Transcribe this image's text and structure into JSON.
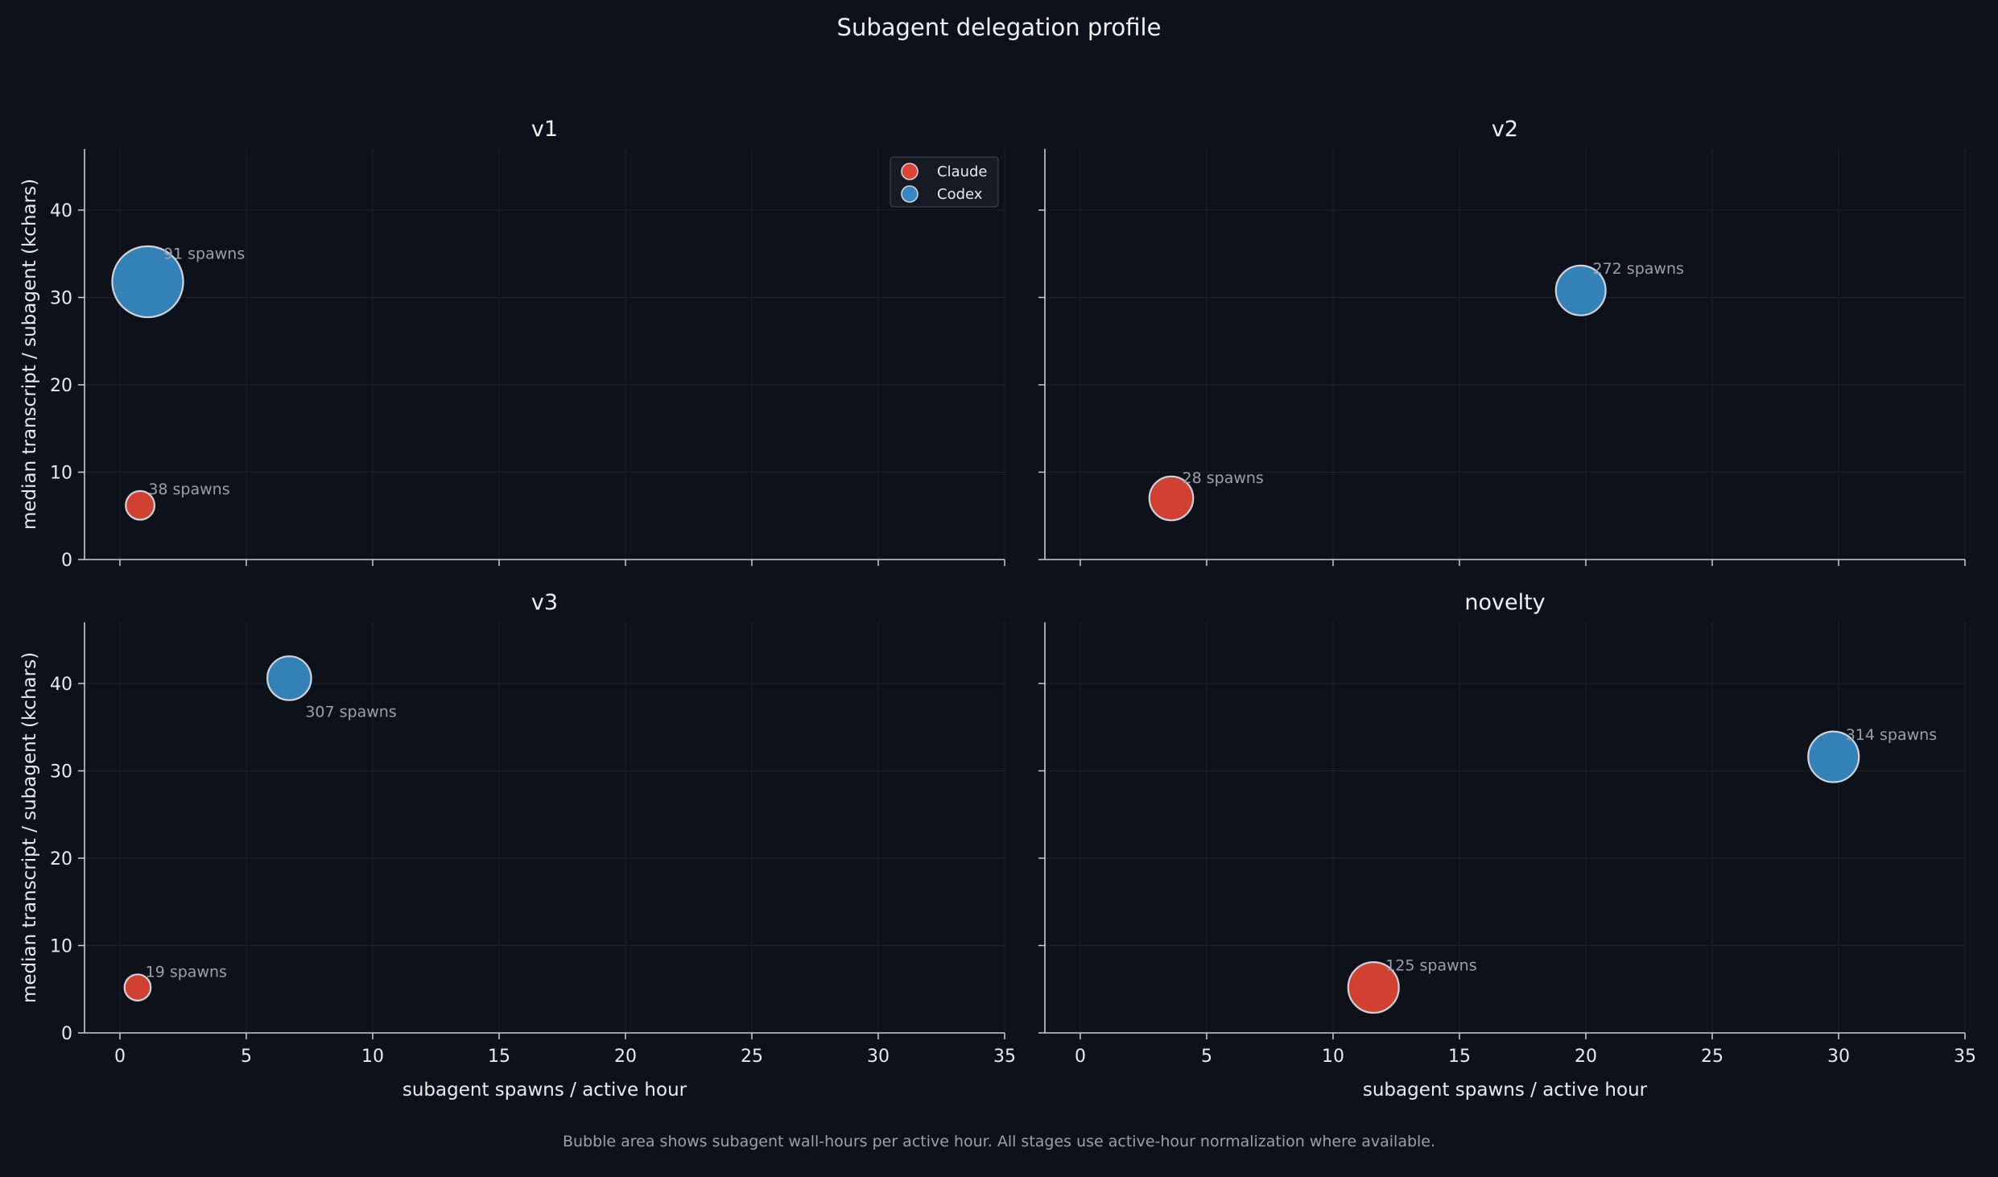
{
  "suptitle": "Subagent delegation profile",
  "footnote": "Bubble area shows subagent wall-hours per active hour. All stages use active-hour normalization where available.",
  "colors": {
    "background": "#0d1119",
    "axis": "#c9ccd3",
    "grid": "#1b2029",
    "claude": "#dc4433",
    "codex": "#3688c0",
    "bubble_edge": "#cfd4dc",
    "annotation": "#9aa0aa"
  },
  "legend": {
    "placement": "upper-right of first panel",
    "entries": [
      "Claude",
      "Codex"
    ]
  },
  "chart_data": [
    {
      "type": "scatter",
      "title": "v1",
      "xlabel": "",
      "ylabel": "median transcript / subagent (kchars)",
      "xlim": [
        -1.4,
        35
      ],
      "ylim": [
        0,
        47
      ],
      "xticks": [
        "0",
        "5",
        "10",
        "15",
        "20",
        "25",
        "30",
        "35"
      ],
      "yticks": [
        "0",
        "10",
        "20",
        "30",
        "40"
      ],
      "grid": true,
      "series": [
        {
          "name": "Claude",
          "x": 0.8,
          "y": 6.2,
          "size": 0.9,
          "annotation": "38 spawns"
        },
        {
          "name": "Codex",
          "x": 1.1,
          "y": 31.8,
          "size": 5.5,
          "annotation": "91 spawns"
        }
      ]
    },
    {
      "type": "scatter",
      "title": "v2",
      "xlabel": "",
      "ylabel": "",
      "xlim": [
        -1.4,
        35
      ],
      "ylim": [
        0,
        47
      ],
      "xticks": [
        "0",
        "5",
        "10",
        "15",
        "20",
        "25",
        "30",
        "35"
      ],
      "yticks": [
        "0",
        "10",
        "20",
        "30",
        "40"
      ],
      "grid": true,
      "series": [
        {
          "name": "Claude",
          "x": 3.6,
          "y": 7.0,
          "size": 2.1,
          "annotation": "28 spawns"
        },
        {
          "name": "Codex",
          "x": 19.8,
          "y": 30.8,
          "size": 2.7,
          "annotation": "272 spawns"
        }
      ]
    },
    {
      "type": "scatter",
      "title": "v3",
      "xlabel": "subagent spawns / active hour",
      "ylabel": "median transcript / subagent (kchars)",
      "xlim": [
        -1.4,
        35
      ],
      "ylim": [
        0,
        47
      ],
      "xticks": [
        "0",
        "5",
        "10",
        "15",
        "20",
        "25",
        "30",
        "35"
      ],
      "yticks": [
        "0",
        "10",
        "20",
        "30",
        "40"
      ],
      "grid": true,
      "series": [
        {
          "name": "Claude",
          "x": 0.7,
          "y": 5.2,
          "size": 0.75,
          "annotation": "19 spawns"
        },
        {
          "name": "Codex",
          "x": 6.7,
          "y": 40.6,
          "size": 2.1,
          "annotation": "307 spawns"
        }
      ]
    },
    {
      "type": "scatter",
      "title": "novelty",
      "xlabel": "subagent spawns / active hour",
      "ylabel": "",
      "xlim": [
        -1.4,
        35
      ],
      "ylim": [
        0,
        47
      ],
      "xticks": [
        "0",
        "5",
        "10",
        "15",
        "20",
        "25",
        "30",
        "35"
      ],
      "yticks": [
        "0",
        "10",
        "20",
        "30",
        "40"
      ],
      "grid": true,
      "series": [
        {
          "name": "Claude",
          "x": 11.6,
          "y": 5.2,
          "size": 2.8,
          "annotation": "125 spawns"
        },
        {
          "name": "Codex",
          "x": 29.8,
          "y": 31.6,
          "size": 2.8,
          "annotation": "314 spawns"
        }
      ]
    }
  ]
}
